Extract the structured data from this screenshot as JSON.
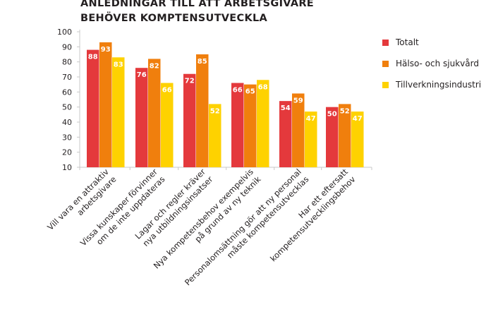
{
  "chart_data": {
    "type": "bar",
    "title_lines": [
      "ANLEDNINGAR TILL ATT ARBETSGIVARE",
      "BEHÖVER KOMPTENSUTVECKLA"
    ],
    "categories": [
      [
        "Vill vara en attraktiv",
        "arbetsgivare"
      ],
      [
        "Vissa kunskaper förvinner",
        "om de inte uppdateras"
      ],
      [
        "Lagar och regler kräver",
        "nya utbildningsinsatser"
      ],
      [
        "Nya kompetensbehov exempelvis",
        "på grund av ny teknik"
      ],
      [
        "Personalomsättning gör att ny personal",
        "måste kompetensutvecklas"
      ],
      [
        "Har ett eftersatt",
        "kompetensutvecklingsbehov"
      ]
    ],
    "series": [
      {
        "name": "Totalt",
        "color": "#e4393c",
        "values": [
          88,
          76,
          72,
          66,
          54,
          50
        ]
      },
      {
        "name": "Hälso- och sjukvård",
        "color": "#f07f0d",
        "values": [
          93,
          82,
          85,
          65,
          59,
          52
        ]
      },
      {
        "name": "Tillverkningsindustri",
        "color": "#fed200",
        "values": [
          83,
          66,
          52,
          68,
          47,
          47
        ]
      }
    ],
    "yticks": [
      "10",
      "20",
      "30",
      "40",
      "50",
      "60",
      "70",
      "80",
      "90",
      "100"
    ],
    "ylim": [
      10,
      100
    ],
    "grid": false,
    "legend_position": "right"
  }
}
